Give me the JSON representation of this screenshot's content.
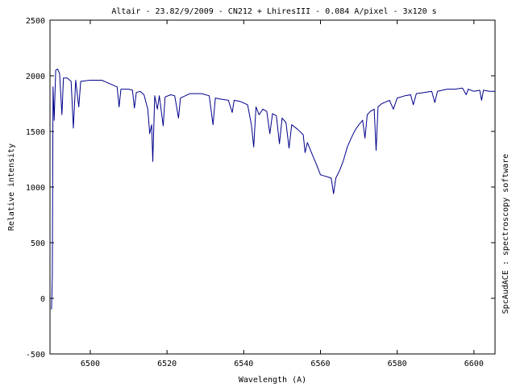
{
  "chart_data": {
    "type": "line",
    "title": "Altair - 23.82/9/2009 - CN212 + LhiresIII - 0.084 A/pixel - 3x120 s",
    "xlabel": "Wavelength (A)",
    "ylabel": "Relative intensity",
    "right_label": "SpcAudACE : spectroscopy software",
    "xlim": [
      6489.5,
      6605.5
    ],
    "ylim": [
      -500,
      2500
    ],
    "x_ticks": [
      6500,
      6520,
      6540,
      6560,
      6580,
      6600
    ],
    "y_ticks": [
      -500,
      0,
      500,
      1000,
      1500,
      2000,
      2500
    ],
    "grid": false,
    "line_color": "#00008b",
    "series": [
      {
        "values": [
          {
            "x": 6489.9,
            "y": -100
          },
          {
            "x": 6490.1,
            "y": 200
          },
          {
            "x": 6490.3,
            "y": 1900
          },
          {
            "x": 6490.6,
            "y": 1600
          },
          {
            "x": 6491.0,
            "y": 2050
          },
          {
            "x": 6491.5,
            "y": 2060
          },
          {
            "x": 6492.0,
            "y": 2020
          },
          {
            "x": 6492.6,
            "y": 1650
          },
          {
            "x": 6493.0,
            "y": 1980
          },
          {
            "x": 6494.0,
            "y": 1980
          },
          {
            "x": 6495.0,
            "y": 1950
          },
          {
            "x": 6495.6,
            "y": 1530
          },
          {
            "x": 6496.2,
            "y": 1960
          },
          {
            "x": 6497.0,
            "y": 1720
          },
          {
            "x": 6497.5,
            "y": 1950
          },
          {
            "x": 6500.0,
            "y": 1960
          },
          {
            "x": 6503.0,
            "y": 1960
          },
          {
            "x": 6505.0,
            "y": 1930
          },
          {
            "x": 6507.0,
            "y": 1900
          },
          {
            "x": 6507.5,
            "y": 1720
          },
          {
            "x": 6508.0,
            "y": 1880
          },
          {
            "x": 6510.0,
            "y": 1880
          },
          {
            "x": 6511.0,
            "y": 1870
          },
          {
            "x": 6511.5,
            "y": 1710
          },
          {
            "x": 6512.0,
            "y": 1850
          },
          {
            "x": 6513.0,
            "y": 1860
          },
          {
            "x": 6514.0,
            "y": 1830
          },
          {
            "x": 6515.0,
            "y": 1700
          },
          {
            "x": 6515.5,
            "y": 1480
          },
          {
            "x": 6516.0,
            "y": 1560
          },
          {
            "x": 6516.3,
            "y": 1230
          },
          {
            "x": 6516.8,
            "y": 1820
          },
          {
            "x": 6517.5,
            "y": 1700
          },
          {
            "x": 6518.0,
            "y": 1820
          },
          {
            "x": 6519.0,
            "y": 1550
          },
          {
            "x": 6519.5,
            "y": 1810
          },
          {
            "x": 6521.0,
            "y": 1830
          },
          {
            "x": 6522.0,
            "y": 1820
          },
          {
            "x": 6523.0,
            "y": 1620
          },
          {
            "x": 6523.5,
            "y": 1800
          },
          {
            "x": 6526.0,
            "y": 1840
          },
          {
            "x": 6529.0,
            "y": 1840
          },
          {
            "x": 6531.0,
            "y": 1820
          },
          {
            "x": 6532.0,
            "y": 1560
          },
          {
            "x": 6532.6,
            "y": 1800
          },
          {
            "x": 6534.0,
            "y": 1790
          },
          {
            "x": 6536.0,
            "y": 1780
          },
          {
            "x": 6537.0,
            "y": 1670
          },
          {
            "x": 6537.5,
            "y": 1780
          },
          {
            "x": 6539.0,
            "y": 1770
          },
          {
            "x": 6541.0,
            "y": 1740
          },
          {
            "x": 6542.0,
            "y": 1560
          },
          {
            "x": 6542.6,
            "y": 1360
          },
          {
            "x": 6543.2,
            "y": 1720
          },
          {
            "x": 6544.0,
            "y": 1650
          },
          {
            "x": 6545.0,
            "y": 1700
          },
          {
            "x": 6546.0,
            "y": 1680
          },
          {
            "x": 6546.8,
            "y": 1480
          },
          {
            "x": 6547.5,
            "y": 1660
          },
          {
            "x": 6548.5,
            "y": 1640
          },
          {
            "x": 6549.3,
            "y": 1390
          },
          {
            "x": 6550.0,
            "y": 1620
          },
          {
            "x": 6551.0,
            "y": 1580
          },
          {
            "x": 6551.8,
            "y": 1350
          },
          {
            "x": 6552.5,
            "y": 1560
          },
          {
            "x": 6554.0,
            "y": 1520
          },
          {
            "x": 6555.5,
            "y": 1470
          },
          {
            "x": 6556.0,
            "y": 1310
          },
          {
            "x": 6556.6,
            "y": 1400
          },
          {
            "x": 6558.0,
            "y": 1280
          },
          {
            "x": 6559.0,
            "y": 1200
          },
          {
            "x": 6560.0,
            "y": 1110
          },
          {
            "x": 6561.0,
            "y": 1100
          },
          {
            "x": 6562.0,
            "y": 1090
          },
          {
            "x": 6562.8,
            "y": 1080
          },
          {
            "x": 6563.4,
            "y": 940
          },
          {
            "x": 6564.0,
            "y": 1080
          },
          {
            "x": 6565.0,
            "y": 1150
          },
          {
            "x": 6566.0,
            "y": 1240
          },
          {
            "x": 6567.0,
            "y": 1360
          },
          {
            "x": 6568.0,
            "y": 1440
          },
          {
            "x": 6569.0,
            "y": 1510
          },
          {
            "x": 6570.0,
            "y": 1560
          },
          {
            "x": 6571.0,
            "y": 1600
          },
          {
            "x": 6571.6,
            "y": 1440
          },
          {
            "x": 6572.2,
            "y": 1650
          },
          {
            "x": 6573.0,
            "y": 1680
          },
          {
            "x": 6574.0,
            "y": 1700
          },
          {
            "x": 6574.5,
            "y": 1330
          },
          {
            "x": 6575.0,
            "y": 1720
          },
          {
            "x": 6576.0,
            "y": 1750
          },
          {
            "x": 6578.0,
            "y": 1780
          },
          {
            "x": 6579.0,
            "y": 1700
          },
          {
            "x": 6580.0,
            "y": 1800
          },
          {
            "x": 6582.0,
            "y": 1820
          },
          {
            "x": 6583.5,
            "y": 1830
          },
          {
            "x": 6584.2,
            "y": 1740
          },
          {
            "x": 6585.0,
            "y": 1840
          },
          {
            "x": 6587.0,
            "y": 1850
          },
          {
            "x": 6589.0,
            "y": 1860
          },
          {
            "x": 6589.8,
            "y": 1760
          },
          {
            "x": 6590.5,
            "y": 1860
          },
          {
            "x": 6593.0,
            "y": 1880
          },
          {
            "x": 6595.0,
            "y": 1880
          },
          {
            "x": 6597.0,
            "y": 1890
          },
          {
            "x": 6598.0,
            "y": 1830
          },
          {
            "x": 6598.5,
            "y": 1880
          },
          {
            "x": 6600.0,
            "y": 1860
          },
          {
            "x": 6601.5,
            "y": 1870
          },
          {
            "x": 6602.0,
            "y": 1780
          },
          {
            "x": 6602.5,
            "y": 1870
          },
          {
            "x": 6604.0,
            "y": 1860
          },
          {
            "x": 6605.5,
            "y": 1860
          }
        ]
      }
    ]
  }
}
